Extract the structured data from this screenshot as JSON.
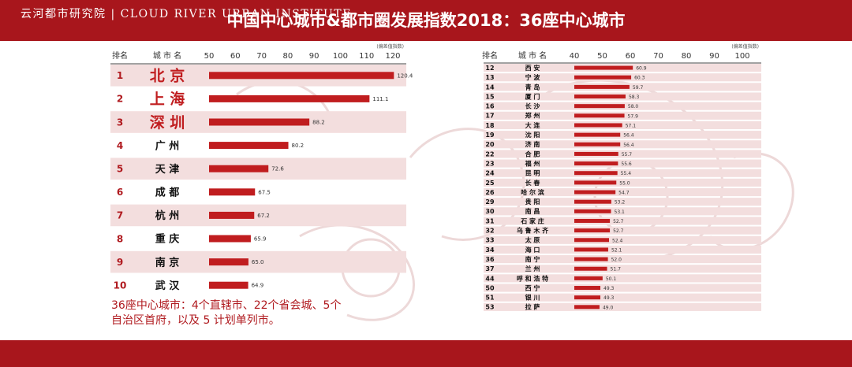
{
  "title": "中国中心城市&都市圈发展指数2018：36座中心城市",
  "footer": "云河都市研究院 | CLOUD RIVER URBAN INSTITUTE",
  "note_line1": "36座中心城市：4个直辖市、22个省会城、5个",
  "note_line2": "自治区首府，以及 5 计划单列市。",
  "colors": {
    "brand_red": "#a8161c",
    "bar_red": "#c01d1f",
    "row_band": "#f3dede"
  },
  "chart_data": [
    {
      "type": "bar",
      "orientation": "horizontal",
      "header": {
        "rank": "排名",
        "city": "城 市 名"
      },
      "unit_note": "(偏差值指数)",
      "xlim": [
        50,
        120
      ],
      "xticks": [
        50,
        60,
        70,
        80,
        90,
        100,
        110,
        120
      ],
      "ranks": [
        "1",
        "2",
        "3",
        "4",
        "5",
        "6",
        "7",
        "8",
        "9",
        "10"
      ],
      "categories": [
        "北 京",
        "上 海",
        "深 圳",
        "广 州",
        "天 津",
        "成 都",
        "杭 州",
        "重 庆",
        "南 京",
        "武 汉"
      ],
      "category_highlight": [
        true,
        true,
        true,
        false,
        false,
        false,
        false,
        false,
        false,
        false
      ],
      "values": [
        120.4,
        111.1,
        88.2,
        80.2,
        72.6,
        67.5,
        67.2,
        65.9,
        65.0,
        64.9
      ],
      "value_labels": [
        "120.4",
        "111.1",
        "88.2",
        "80.2",
        "72.6",
        "67.5",
        "67.2",
        "65.9",
        "65.0",
        "64.9"
      ]
    },
    {
      "type": "bar",
      "orientation": "horizontal",
      "header": {
        "rank": "排名",
        "city": "城 市 名"
      },
      "unit_note": "(偏差值指数)",
      "xlim": [
        40,
        100
      ],
      "xticks": [
        40,
        50,
        60,
        70,
        80,
        90,
        100
      ],
      "ranks": [
        "12",
        "13",
        "14",
        "15",
        "16",
        "17",
        "18",
        "19",
        "20",
        "22",
        "23",
        "24",
        "25",
        "26",
        "29",
        "30",
        "31",
        "32",
        "33",
        "34",
        "36",
        "37",
        "44",
        "50",
        "51",
        "53"
      ],
      "categories": [
        "西 安",
        "宁 波",
        "青 岛",
        "厦 门",
        "长 沙",
        "郑 州",
        "大 连",
        "沈 阳",
        "济 南",
        "合 肥",
        "福 州",
        "昆 明",
        "长 春",
        "哈 尔 滨",
        "贵 阳",
        "南 昌",
        "石 家 庄",
        "乌 鲁 木 齐",
        "太 原",
        "海 口",
        "南 宁",
        "兰 州",
        "呼 和 浩 特",
        "西 宁",
        "银 川",
        "拉 萨"
      ],
      "values": [
        60.9,
        60.3,
        59.7,
        58.3,
        58.0,
        57.9,
        57.1,
        56.4,
        56.4,
        55.7,
        55.6,
        55.4,
        55.0,
        54.7,
        53.2,
        53.1,
        52.7,
        52.7,
        52.4,
        52.1,
        52.0,
        51.7,
        50.1,
        49.3,
        49.3,
        49.0
      ],
      "value_labels": [
        "60.9",
        "60.3",
        "59.7",
        "58.3",
        "58.0",
        "57.9",
        "57.1",
        "56.4",
        "56.4",
        "55.7",
        "55.6",
        "55.4",
        "55.0",
        "54.7",
        "53.2",
        "53.1",
        "52.7",
        "52.7",
        "52.4",
        "52.1",
        "52.0",
        "51.7",
        "50.1",
        "49.3",
        "49.3",
        "49.0"
      ]
    }
  ]
}
